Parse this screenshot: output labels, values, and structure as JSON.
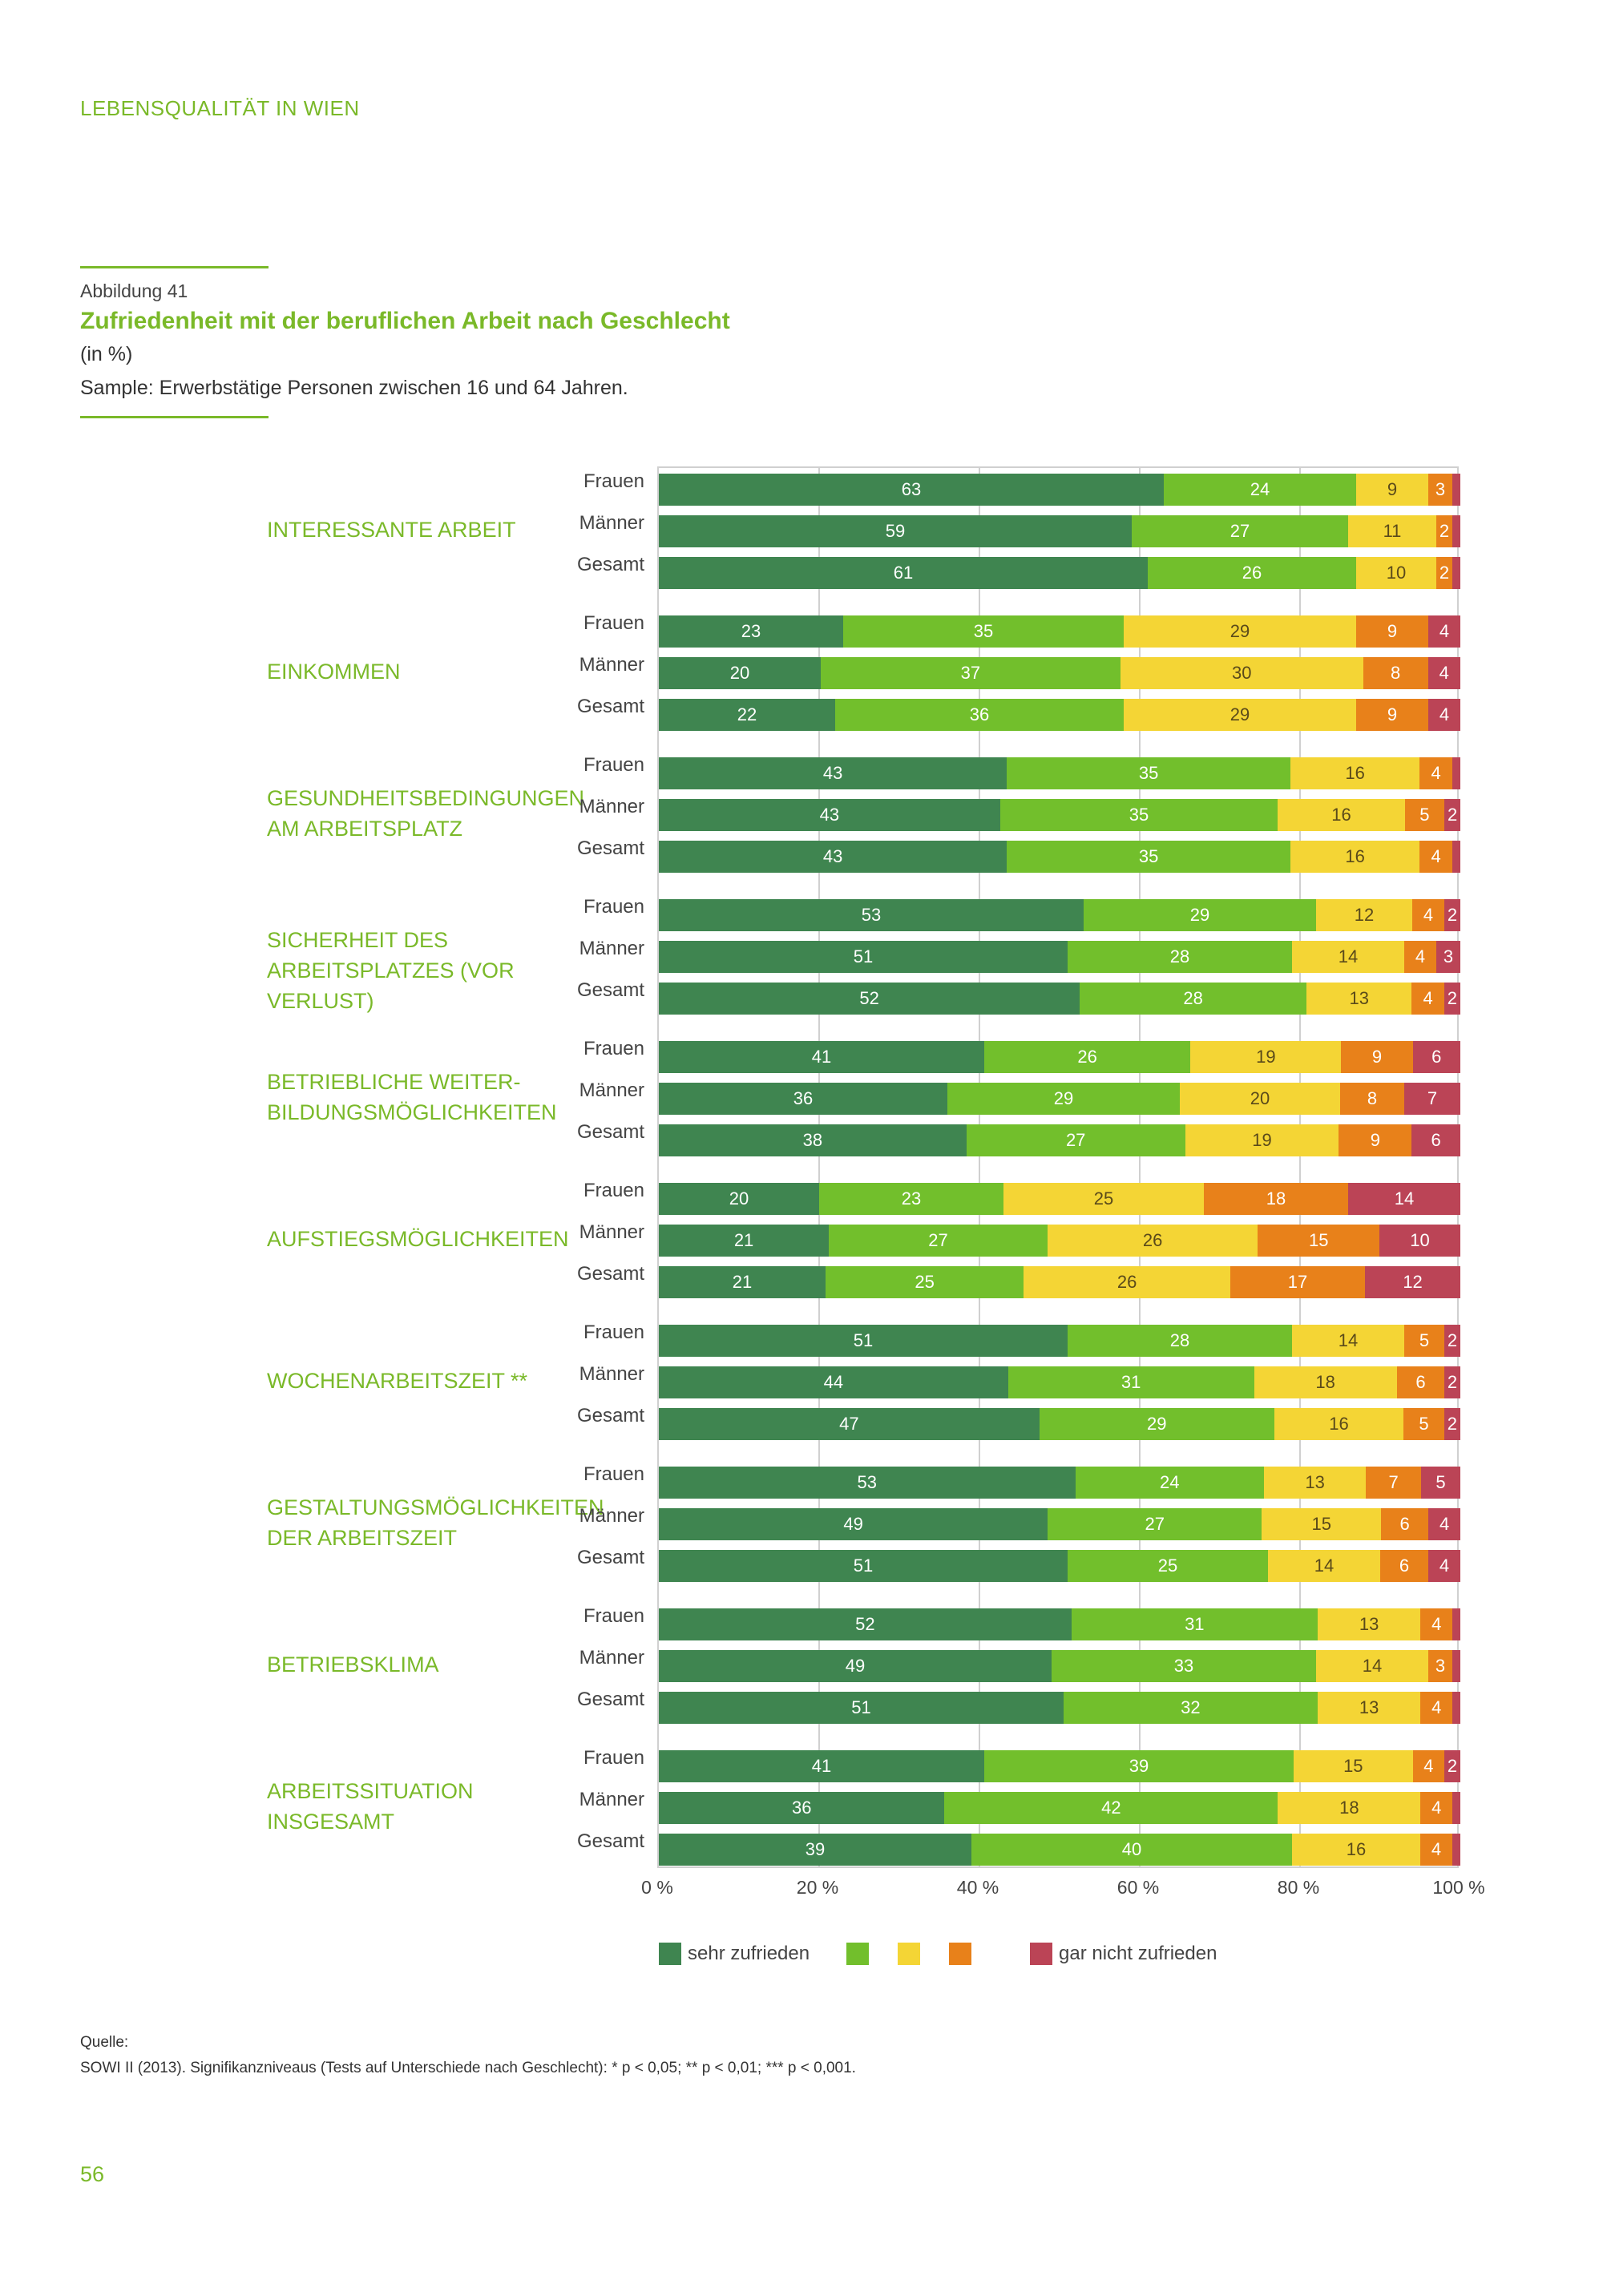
{
  "header": {
    "running_head": "LEBENSQUALITÄT IN WIEN"
  },
  "figure": {
    "number": "Abbildung 41",
    "title": "Zufriedenheit mit der beruflichen Arbeit nach Geschlecht",
    "unit": "(in %)",
    "sample": "Sample: Erwerbstätige Personen zwischen 16 und 64 Jahren."
  },
  "chart_data": {
    "type": "bar",
    "orientation": "horizontal",
    "stacked": true,
    "xlim": [
      0,
      100
    ],
    "x_ticks": [
      "0 %",
      "20 %",
      "40 %",
      "60 %",
      "80 %",
      "100 %"
    ],
    "grid": true,
    "legend_position": "bottom",
    "series": [
      {
        "name": "sehr zufrieden",
        "color": "#3f8550"
      },
      {
        "name": "",
        "color": "#72bf2c"
      },
      {
        "name": "",
        "color": "#f4d535"
      },
      {
        "name": "",
        "color": "#e8811a"
      },
      {
        "name": "gar nicht zufrieden",
        "color": "#bb4456"
      }
    ],
    "row_labels": [
      "Frauen",
      "Männer",
      "Gesamt"
    ],
    "groups": [
      {
        "label": "INTERESSANTE ARBEIT",
        "rows": [
          [
            63,
            24,
            9,
            3,
            1
          ],
          [
            59,
            27,
            11,
            2,
            1
          ],
          [
            61,
            26,
            10,
            2,
            1
          ]
        ]
      },
      {
        "label": "EINKOMMEN",
        "rows": [
          [
            23,
            35,
            29,
            9,
            4
          ],
          [
            20,
            37,
            30,
            8,
            4
          ],
          [
            22,
            36,
            29,
            9,
            4
          ]
        ]
      },
      {
        "label": "GESUNDHEITSBEDINGUNGEN AM ARBEITSPLATZ",
        "rows": [
          [
            43,
            35,
            16,
            4,
            1
          ],
          [
            43,
            35,
            16,
            5,
            2
          ],
          [
            43,
            35,
            16,
            4,
            1
          ]
        ]
      },
      {
        "label": "SICHERHEIT DES ARBEITSPLATZES (VOR VERLUST)",
        "rows": [
          [
            53,
            29,
            12,
            4,
            2
          ],
          [
            51,
            28,
            14,
            4,
            3
          ],
          [
            52,
            28,
            13,
            4,
            2
          ]
        ]
      },
      {
        "label": "BETRIEBLICHE  WEITER-BILDUNGSMÖGLICHKEITEN",
        "rows": [
          [
            41,
            26,
            19,
            9,
            6
          ],
          [
            36,
            29,
            20,
            8,
            7
          ],
          [
            38,
            27,
            19,
            9,
            6
          ]
        ]
      },
      {
        "label": "AUFSTIEGSMÖGLICHKEITEN",
        "rows": [
          [
            20,
            23,
            25,
            18,
            14
          ],
          [
            21,
            27,
            26,
            15,
            10
          ],
          [
            21,
            25,
            26,
            17,
            12
          ]
        ]
      },
      {
        "label": "WOCHENARBEITSZEIT **",
        "rows": [
          [
            51,
            28,
            14,
            5,
            2
          ],
          [
            44,
            31,
            18,
            6,
            2
          ],
          [
            47,
            29,
            16,
            5,
            2
          ]
        ]
      },
      {
        "label": "GESTALTUNGSMÖGLICHKEITEN DER ARBEITSZEIT",
        "rows": [
          [
            53,
            24,
            13,
            7,
            5
          ],
          [
            49,
            27,
            15,
            6,
            4
          ],
          [
            51,
            25,
            14,
            6,
            4
          ]
        ]
      },
      {
        "label": "BETRIEBSKLIMA",
        "rows": [
          [
            52,
            31,
            13,
            4,
            1
          ],
          [
            49,
            33,
            14,
            3,
            1
          ],
          [
            51,
            32,
            13,
            4,
            1
          ]
        ]
      },
      {
        "label": "ARBEITSSITUATION INSGESAMT",
        "rows": [
          [
            41,
            39,
            15,
            4,
            2
          ],
          [
            36,
            42,
            18,
            4,
            1
          ],
          [
            39,
            40,
            16,
            4,
            1
          ]
        ]
      }
    ]
  },
  "footer": {
    "source_label": "Quelle:",
    "source_text": "SOWI II (2013). Signifikanzniveaus (Tests auf Unterschiede nach Geschlecht): * p < 0,05; ** p < 0,01; *** p < 0,001.",
    "page_number": "56"
  }
}
